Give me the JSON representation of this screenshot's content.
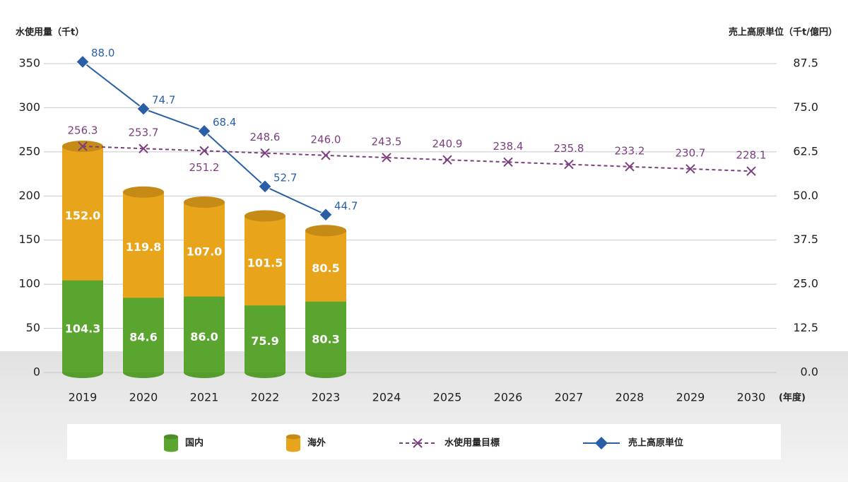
{
  "chart_data": {
    "type": "stacked-bar-line",
    "y_label": "水使用量（千t）",
    "y2_label": "売上高原単位（千t/億円）",
    "x_unit": "(年度)",
    "categories": [
      "2019",
      "2020",
      "2021",
      "2022",
      "2023",
      "2024",
      "2025",
      "2026",
      "2027",
      "2028",
      "2029",
      "2030"
    ],
    "ylim": [
      0,
      350
    ],
    "yticks": [
      0,
      50,
      100,
      150,
      200,
      250,
      300,
      350
    ],
    "y2lim": [
      0,
      87.5
    ],
    "y2ticks": [
      {
        "value": 0,
        "label": "0.0"
      },
      12.5,
      {
        "value": 25,
        "label": "25.0"
      },
      37.5,
      {
        "value": 50,
        "label": "50.0"
      },
      62.5,
      {
        "value": 75,
        "label": "75.0"
      },
      87.5
    ],
    "grid": true,
    "legend": "bottom",
    "series": [
      {
        "name": "国内",
        "kind": "bar",
        "color": "#5aa530",
        "values": [
          104.3,
          84.6,
          86.0,
          75.9,
          80.3,
          null,
          null,
          null,
          null,
          null,
          null,
          null
        ],
        "value_labels": [
          "104.3",
          "84.6",
          "86.0",
          "75.9",
          "80.3",
          null,
          null,
          null,
          null,
          null,
          null,
          null
        ]
      },
      {
        "name": "海外",
        "kind": "bar",
        "color": "#e8a41a",
        "values": [
          152.0,
          119.8,
          107.0,
          101.5,
          80.5,
          null,
          null,
          null,
          null,
          null,
          null,
          null
        ],
        "value_labels": [
          "152.0",
          "119.8",
          "107.0",
          "101.5",
          "80.5",
          null,
          null,
          null,
          null,
          null,
          null,
          null
        ]
      },
      {
        "name": "水使用量目標",
        "kind": "dashed-line",
        "color": "#7b3f7f",
        "values": [
          256.3,
          253.7,
          251.2,
          248.6,
          246.0,
          243.5,
          240.9,
          238.4,
          235.8,
          233.2,
          230.7,
          228.1
        ],
        "value_labels": [
          "256.3",
          "253.7",
          "251.2",
          "248.6",
          "246.0",
          "243.5",
          "240.9",
          "238.4",
          "235.8",
          "233.2",
          "230.7",
          "228.1"
        ]
      },
      {
        "name": "売上高原単位",
        "kind": "line",
        "axis": "y2",
        "color": "#2a5fa5",
        "values": [
          88.0,
          74.7,
          68.4,
          52.7,
          44.7,
          null,
          null,
          null,
          null,
          null,
          null,
          null
        ],
        "value_labels": [
          "88.0",
          "74.7",
          "68.4",
          "52.7",
          "44.7",
          null,
          null,
          null,
          null,
          null,
          null,
          null
        ]
      }
    ]
  }
}
